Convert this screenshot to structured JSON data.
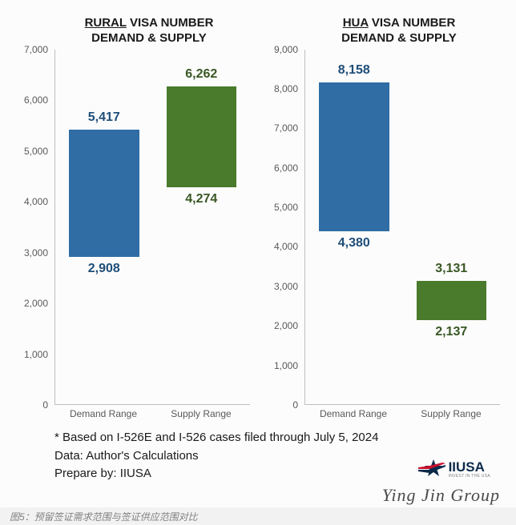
{
  "background_color": "#fcfcfc",
  "axis_color": "#bfbfbf",
  "tick_label_color": "#595959",
  "title_color": "#1a1a1a",
  "panel_left": {
    "title_underlined": "RURAL",
    "title_rest_line1": " VISA NUMBER",
    "title_line2": "DEMAND & SUPPLY",
    "ylim": [
      0,
      7000
    ],
    "ytick_step": 1000,
    "yticks": [
      "0",
      "1,000",
      "2,000",
      "3,000",
      "4,000",
      "5,000",
      "6,000",
      "7,000"
    ],
    "categories": [
      "Demand Range",
      "Supply Range"
    ],
    "bars": [
      {
        "low": 2908,
        "high": 5417,
        "low_label": "2,908",
        "high_label": "5,417",
        "fill": "#2f6da4",
        "label_color": "#1f4e79"
      },
      {
        "low": 4274,
        "high": 6262,
        "low_label": "4,274",
        "high_label": "6,262",
        "fill": "#4a7a2b",
        "label_color": "#385723"
      }
    ]
  },
  "panel_right": {
    "title_underlined": "HUA",
    "title_rest_line1": " VISA NUMBER",
    "title_line2": "DEMAND & SUPPLY",
    "ylim": [
      0,
      9000
    ],
    "ytick_step": 1000,
    "yticks": [
      "0",
      "1,000",
      "2,000",
      "3,000",
      "4,000",
      "5,000",
      "6,000",
      "7,000",
      "8,000",
      "9,000"
    ],
    "categories": [
      "Demand Range",
      "Supply Range"
    ],
    "bars": [
      {
        "low": 4380,
        "high": 8158,
        "low_label": "4,380",
        "high_label": "8,158",
        "fill": "#2f6da4",
        "label_color": "#1f4e79"
      },
      {
        "low": 2137,
        "high": 3131,
        "low_label": "2,137",
        "high_label": "3,131",
        "fill": "#4a7a2b",
        "label_color": "#385723"
      }
    ]
  },
  "footer": {
    "line1": "* Based on I-526E and I-526 cases filed through July 5, 2024",
    "line2": "Data: Author's Calculations",
    "line3": "Prepare by: IIUSA"
  },
  "logo": {
    "text_main": "IIUSA",
    "text_sub": "INVEST IN THE USA",
    "star_red": "#c8102e",
    "star_navy": "#0b2a4a"
  },
  "script_logo": "Ying Jin Group",
  "caption": "图5：预留签证需求范围与签证供应范围对比"
}
